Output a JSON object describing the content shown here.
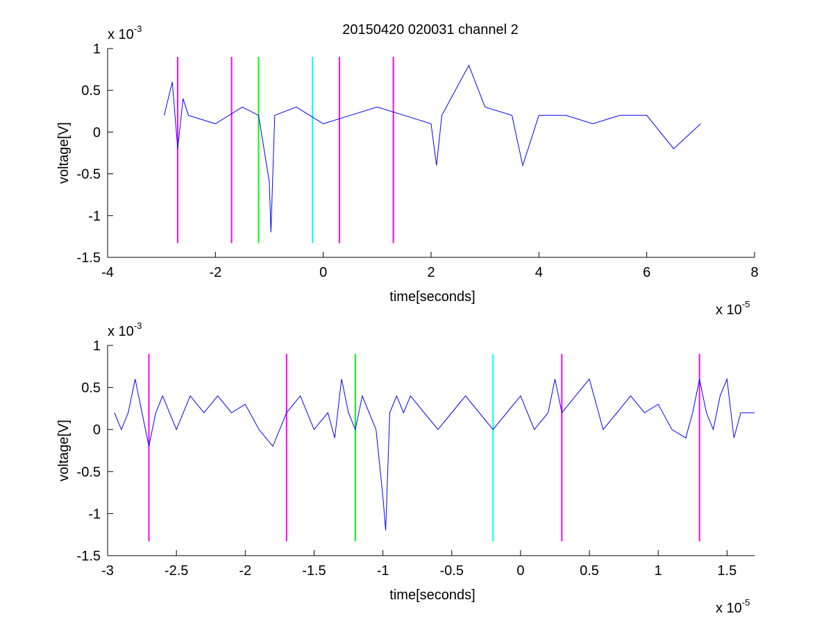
{
  "figure": {
    "title": "20150420 020031 channel 2"
  },
  "chart_data": [
    {
      "type": "line",
      "title": "20150420 020031 channel 2",
      "xlabel": "time[seconds]",
      "ylabel": "voltage[V]",
      "x_exponent_label": "x 10",
      "x_exponent": "-5",
      "y_exponent_label": "x 10",
      "y_exponent": "-3",
      "xlim": [
        -4,
        8
      ],
      "ylim": [
        -1.5,
        1
      ],
      "xticks": [
        -4,
        -2,
        0,
        2,
        4,
        6,
        8
      ],
      "xtick_labels": [
        "-4",
        "-2",
        "0",
        "2",
        "4",
        "6",
        "8"
      ],
      "yticks": [
        -1.5,
        -1,
        -0.5,
        0,
        0.5,
        1
      ],
      "ytick_labels": [
        "-1.5",
        "-1",
        "-0.5",
        "0",
        "0.5",
        "1"
      ],
      "grid": false,
      "series": [
        {
          "color": "#0000ff",
          "x_range": [
            -2.95,
            7.0
          ],
          "values_note": "noisy voltage trace, mostly between 0 and 0.4 (x1e-3)",
          "x": [
            -2.95,
            -2.8,
            -2.7,
            -2.6,
            -2.5,
            -2.0,
            -1.5,
            -1.2,
            -1.0,
            -0.97,
            -0.9,
            -0.5,
            0.0,
            0.5,
            1.0,
            1.5,
            2.0,
            2.1,
            2.2,
            2.7,
            3.0,
            3.5,
            3.7,
            4.0,
            4.5,
            5.0,
            5.5,
            6.0,
            6.5,
            7.0
          ],
          "y": [
            0.2,
            0.6,
            -0.2,
            0.4,
            0.2,
            0.1,
            0.3,
            0.2,
            -0.6,
            -1.2,
            0.2,
            0.3,
            0.1,
            0.2,
            0.3,
            0.2,
            0.1,
            -0.4,
            0.2,
            0.8,
            0.3,
            0.2,
            -0.4,
            0.2,
            0.2,
            0.1,
            0.2,
            0.2,
            -0.2,
            0.1
          ]
        }
      ],
      "markers": [
        {
          "x": -2.7,
          "color": "#ff00ff"
        },
        {
          "x": -1.7,
          "color": "#ff00ff"
        },
        {
          "x": -1.2,
          "color": "#00ff00"
        },
        {
          "x": -0.2,
          "color": "#00ffff"
        },
        {
          "x": 0.3,
          "color": "#ff00ff"
        },
        {
          "x": 1.3,
          "color": "#ff00ff"
        }
      ],
      "marker_y": [
        -1.33,
        0.9
      ]
    },
    {
      "type": "line",
      "title": "",
      "xlabel": "time[seconds]",
      "ylabel": "voltage[V]",
      "x_exponent_label": "x 10",
      "x_exponent": "-5",
      "y_exponent_label": "x 10",
      "y_exponent": "-3",
      "xlim": [
        -3.0,
        1.7
      ],
      "ylim": [
        -1.5,
        1
      ],
      "xticks": [
        -3,
        -2.5,
        -2,
        -1.5,
        -1,
        -0.5,
        0,
        0.5,
        1,
        1.5
      ],
      "xtick_labels": [
        "-3",
        "-2.5",
        "-2",
        "-1.5",
        "-1",
        "-0.5",
        "0",
        "0.5",
        "1",
        "1.5"
      ],
      "yticks": [
        -1.5,
        -1,
        -0.5,
        0,
        0.5,
        1
      ],
      "ytick_labels": [
        "-1.5",
        "-1",
        "-0.5",
        "0",
        "0.5",
        "1"
      ],
      "grid": false,
      "series": [
        {
          "color": "#0000ff",
          "x": [
            -2.95,
            -2.9,
            -2.85,
            -2.8,
            -2.75,
            -2.7,
            -2.65,
            -2.6,
            -2.5,
            -2.4,
            -2.3,
            -2.2,
            -2.1,
            -2.0,
            -1.9,
            -1.8,
            -1.7,
            -1.6,
            -1.5,
            -1.4,
            -1.35,
            -1.3,
            -1.25,
            -1.2,
            -1.15,
            -1.1,
            -1.05,
            -1.0,
            -0.98,
            -0.95,
            -0.9,
            -0.85,
            -0.8,
            -0.7,
            -0.6,
            -0.5,
            -0.4,
            -0.3,
            -0.2,
            -0.1,
            0.0,
            0.1,
            0.2,
            0.25,
            0.3,
            0.4,
            0.5,
            0.6,
            0.7,
            0.8,
            0.9,
            1.0,
            1.1,
            1.2,
            1.25,
            1.3,
            1.35,
            1.4,
            1.45,
            1.5,
            1.55,
            1.6,
            1.7
          ],
          "y": [
            0.2,
            0.0,
            0.2,
            0.6,
            0.2,
            -0.2,
            0.2,
            0.4,
            0.0,
            0.4,
            0.2,
            0.4,
            0.2,
            0.3,
            0.0,
            -0.2,
            0.2,
            0.4,
            0.0,
            0.2,
            -0.1,
            0.6,
            0.2,
            0.0,
            0.4,
            0.2,
            0.0,
            -0.8,
            -1.2,
            0.2,
            0.4,
            0.2,
            0.4,
            0.2,
            0.0,
            0.2,
            0.4,
            0.2,
            0.0,
            0.2,
            0.4,
            0.0,
            0.2,
            0.6,
            0.2,
            0.4,
            0.6,
            0.0,
            0.2,
            0.4,
            0.2,
            0.3,
            0.0,
            -0.1,
            0.2,
            0.6,
            0.2,
            0.0,
            0.4,
            0.6,
            -0.1,
            0.2,
            0.2
          ]
        }
      ],
      "markers": [
        {
          "x": -2.7,
          "color": "#ff00ff"
        },
        {
          "x": -1.7,
          "color": "#ff00ff"
        },
        {
          "x": -1.2,
          "color": "#00ff00"
        },
        {
          "x": -0.2,
          "color": "#00ffff"
        },
        {
          "x": 0.3,
          "color": "#ff00ff"
        },
        {
          "x": 1.3,
          "color": "#ff00ff"
        }
      ],
      "marker_y": [
        -1.33,
        0.9
      ]
    }
  ]
}
